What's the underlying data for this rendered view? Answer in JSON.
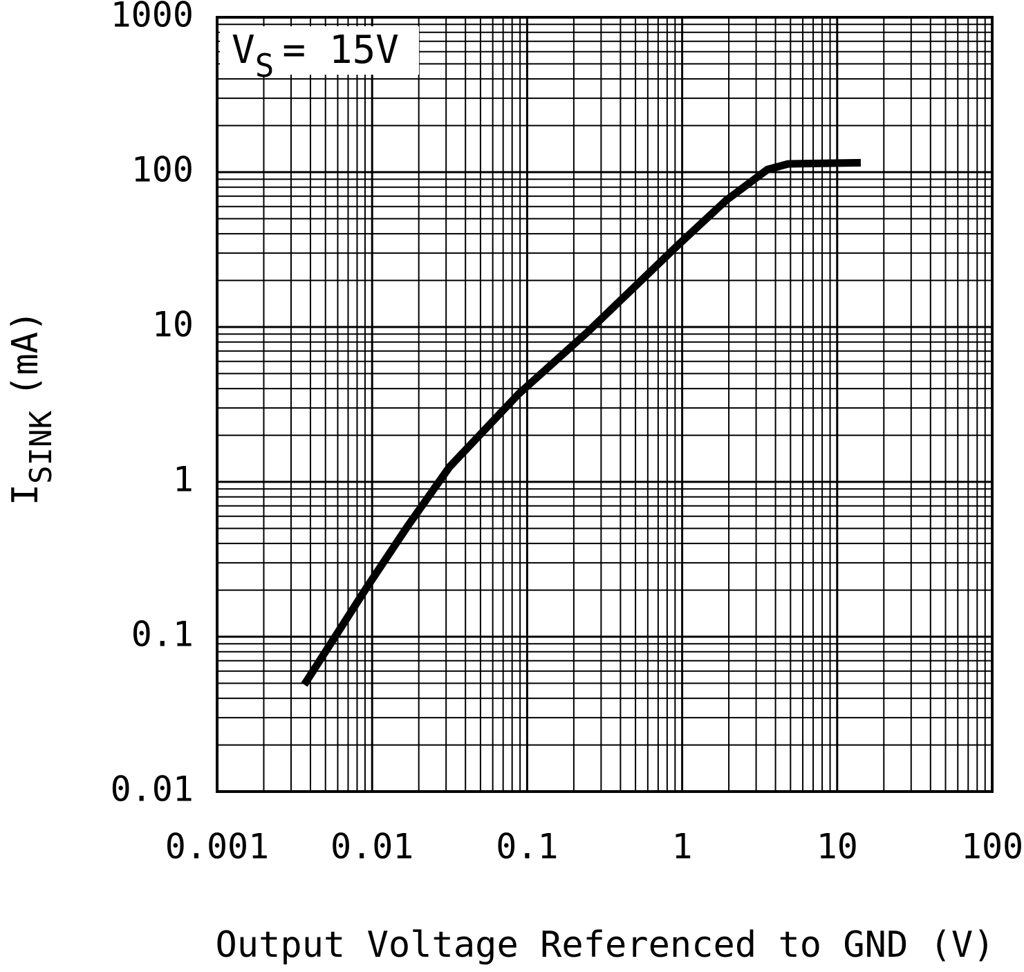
{
  "chart_data": {
    "type": "line",
    "xlabel": "Output Voltage Referenced to GND (V)",
    "ylabel": {
      "text": "I",
      "sub": "SINK",
      "rest": "(mA)"
    },
    "annotation": {
      "text": "V",
      "sub": "S",
      "rest": "= 15V"
    },
    "xscale": "log",
    "yscale": "log",
    "xlim": [
      0.001,
      100
    ],
    "ylim": [
      0.01,
      1000
    ],
    "xticks": [
      0.001,
      0.01,
      0.1,
      1,
      10,
      100
    ],
    "yticks": [
      0.01,
      0.1,
      1,
      10,
      100,
      1000
    ],
    "grid": true,
    "minor_grid": true,
    "series": [
      {
        "color": "#000000",
        "x": [
          0.00365,
          0.0092,
          0.017,
          0.0316,
          0.088,
          0.246,
          0.934,
          1.92,
          3.55,
          4.83,
          14.2
        ],
        "values": [
          0.049,
          0.207,
          0.52,
          1.25,
          3.69,
          9.3,
          33.6,
          65.7,
          104,
          113,
          115
        ]
      }
    ]
  }
}
